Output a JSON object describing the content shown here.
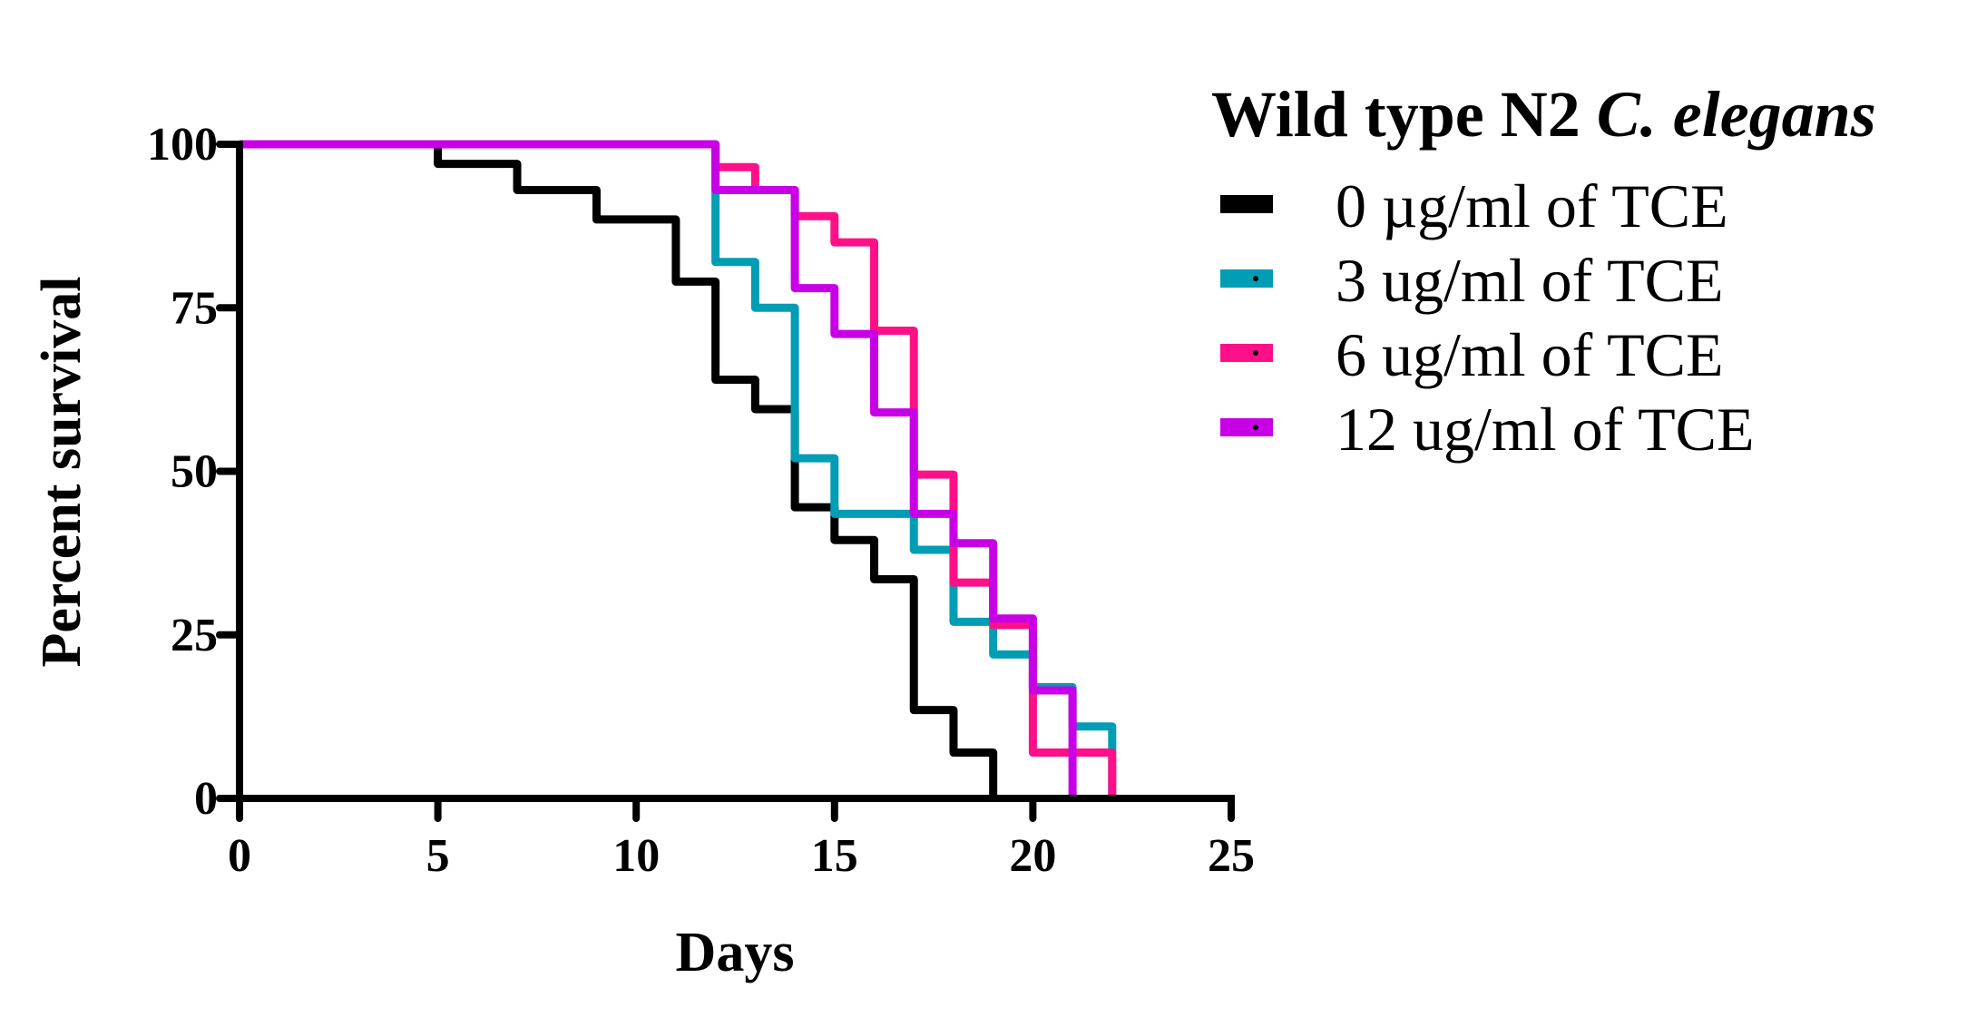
{
  "chart_data": {
    "type": "line",
    "step": true,
    "title_main": "Wild type N2 ",
    "title_italic": "C. elegans",
    "xlabel": "Days",
    "ylabel": "Percent survival",
    "xlim": [
      0,
      25
    ],
    "ylim": [
      0,
      100
    ],
    "xticks": [
      0,
      5,
      10,
      15,
      20,
      25
    ],
    "yticks": [
      0,
      25,
      50,
      75,
      100
    ],
    "grid": false,
    "legend_placement": "right",
    "series": [
      {
        "name": "0 µg/ml of TCE",
        "color": "#000000",
        "points": [
          [
            0,
            100
          ],
          [
            5,
            97
          ],
          [
            7,
            93
          ],
          [
            9,
            88.5
          ],
          [
            11,
            79
          ],
          [
            12,
            64
          ],
          [
            13,
            59.5
          ],
          [
            14,
            44.5
          ],
          [
            15,
            39.5
          ],
          [
            16,
            33.5
          ],
          [
            17,
            13.5
          ],
          [
            18,
            7
          ],
          [
            19,
            0
          ]
        ]
      },
      {
        "name": "3 ug/ml of TCE",
        "color": "#009DB5",
        "points": [
          [
            0,
            100
          ],
          [
            12,
            82
          ],
          [
            13,
            75
          ],
          [
            14,
            52
          ],
          [
            15,
            43.5
          ],
          [
            17,
            38
          ],
          [
            18,
            27
          ],
          [
            19,
            22
          ],
          [
            20,
            17
          ],
          [
            21,
            11
          ],
          [
            22,
            0
          ]
        ]
      },
      {
        "name": "6 ug/ml of TCE",
        "color": "#FF1088",
        "points": [
          [
            0,
            100
          ],
          [
            12,
            96.5
          ],
          [
            13,
            93
          ],
          [
            14,
            89
          ],
          [
            15,
            85
          ],
          [
            16,
            71.5
          ],
          [
            17,
            49.5
          ],
          [
            18,
            33
          ],
          [
            19,
            26.5
          ],
          [
            20,
            7
          ],
          [
            22,
            0
          ]
        ]
      },
      {
        "name": "12 ug/ml of TCE",
        "color": "#C800E6",
        "points": [
          [
            0,
            100
          ],
          [
            12,
            93
          ],
          [
            14,
            78
          ],
          [
            15,
            71
          ],
          [
            16,
            59
          ],
          [
            17,
            43.5
          ],
          [
            18,
            39
          ],
          [
            19,
            27.5
          ],
          [
            20,
            16.5
          ],
          [
            21,
            0
          ]
        ]
      }
    ]
  }
}
